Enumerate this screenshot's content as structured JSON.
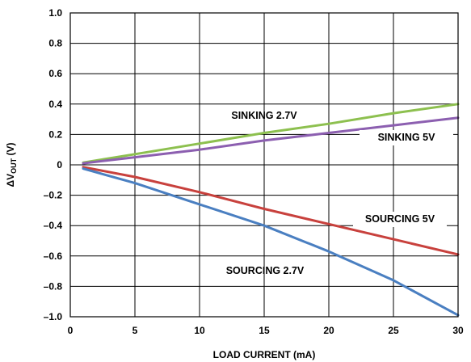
{
  "chart_data": {
    "type": "line",
    "title": "",
    "xlabel": "LOAD CURRENT (mA)",
    "ylabel": "ΔV",
    "ylabel_subscript": "OUT",
    "ylabel_unit": " (V)",
    "xlim": [
      0,
      30
    ],
    "ylim": [
      -1.0,
      1.0
    ],
    "x_ticks": [
      0,
      5,
      10,
      15,
      20,
      25,
      30
    ],
    "x_tick_labels": [
      "0",
      "5",
      "10",
      "15",
      "20",
      "25",
      "30"
    ],
    "y_ticks": [
      1.0,
      0.8,
      0.6,
      0.4,
      0.2,
      0,
      -0.2,
      -0.4,
      -0.6,
      -0.8,
      -1.0
    ],
    "y_tick_labels": [
      "1.0",
      "0.8",
      "0.6",
      "0.4",
      "0.2",
      "0",
      "–0.2",
      "–0.4",
      "–0.6",
      "–0.8",
      "–1.0"
    ],
    "grid": true,
    "series": [
      {
        "name": "SINKING 2.7V",
        "color": "#8dc04f",
        "x": [
          1,
          5,
          10,
          15,
          20,
          25,
          30
        ],
        "y": [
          0.015,
          0.07,
          0.14,
          0.21,
          0.27,
          0.34,
          0.4
        ]
      },
      {
        "name": "SINKING 5V",
        "color": "#8c5fb0",
        "x": [
          1,
          5,
          10,
          15,
          20,
          25,
          30
        ],
        "y": [
          0.01,
          0.05,
          0.1,
          0.16,
          0.21,
          0.26,
          0.31
        ]
      },
      {
        "name": "SOURCING 5V",
        "color": "#c8413d",
        "x": [
          1,
          5,
          10,
          15,
          20,
          25,
          30
        ],
        "y": [
          -0.015,
          -0.08,
          -0.18,
          -0.29,
          -0.39,
          -0.49,
          -0.59
        ]
      },
      {
        "name": "SOURCING 2.7V",
        "color": "#4a7fc1",
        "x": [
          1,
          5,
          10,
          15,
          20,
          25,
          30
        ],
        "y": [
          -0.025,
          -0.12,
          -0.26,
          -0.4,
          -0.57,
          -0.76,
          -0.99
        ]
      }
    ],
    "annotations": [
      "SINKING 2.7V",
      "SINKING 5V",
      "SOURCING 5V",
      "SOURCING 2.7V"
    ]
  }
}
